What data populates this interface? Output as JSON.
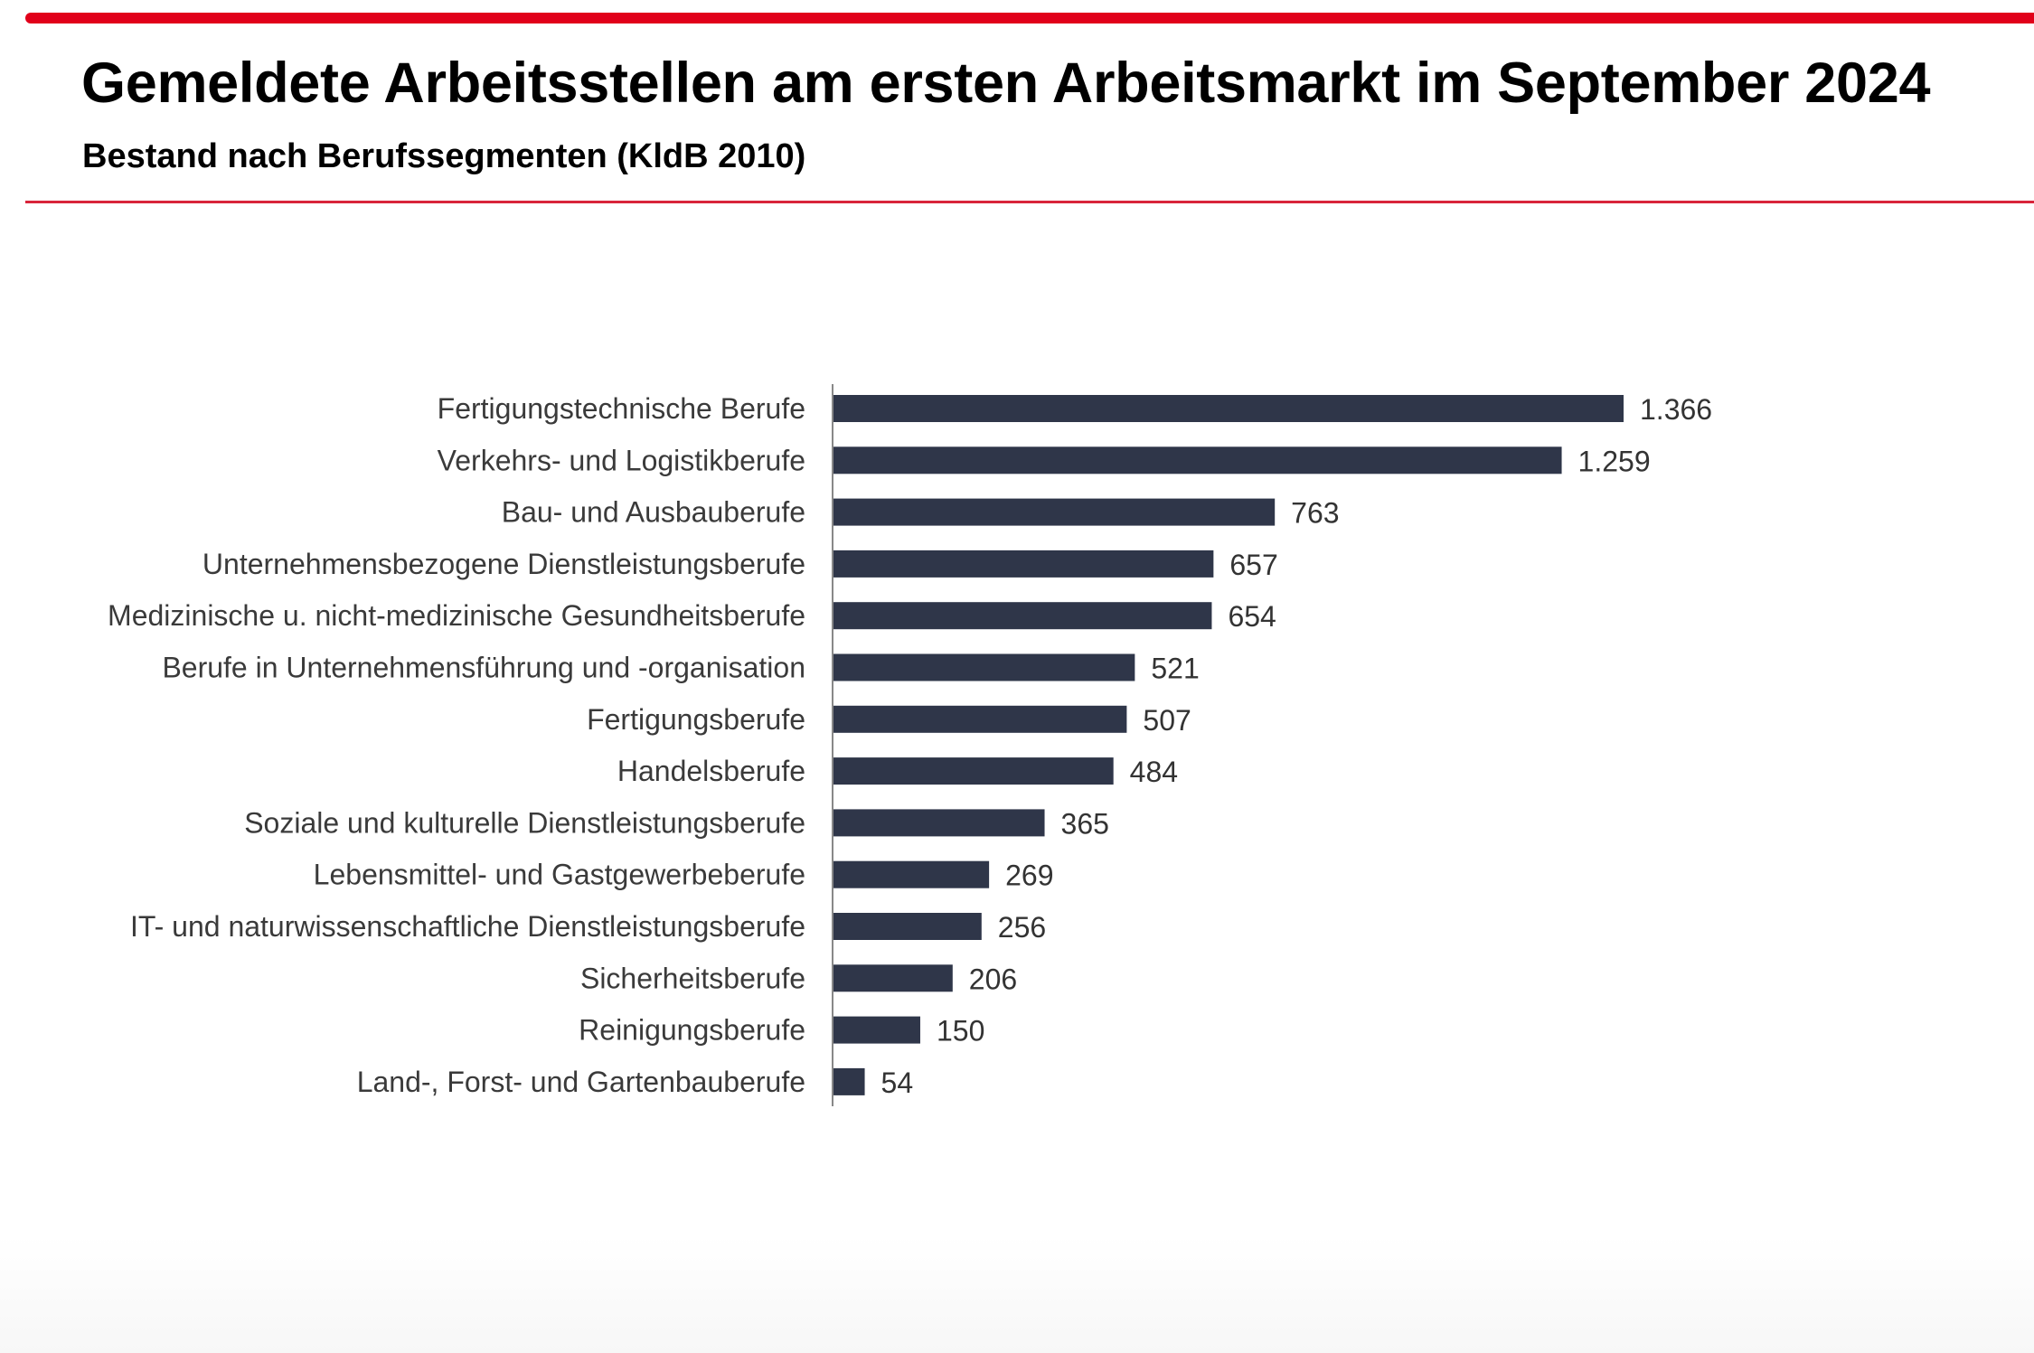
{
  "title": "Gemeldete Arbeitsstellen am ersten Arbeitsmarkt im September 2024",
  "subtitle": "Bestand nach Berufssegmenten (KldB 2010)",
  "colors": {
    "accent": "#e1001a",
    "bar": "#2f3649"
  },
  "chart_data": {
    "type": "bar",
    "orientation": "horizontal",
    "title": "Gemeldete Arbeitsstellen am ersten Arbeitsmarkt im September 2024",
    "subtitle": "Bestand nach Berufssegmenten (KldB 2010)",
    "xlabel": "",
    "ylabel": "",
    "grid": false,
    "xlim": [
      0,
      1366
    ],
    "categories": [
      "Fertigungstechnische Berufe",
      "Verkehrs- und Logistikberufe",
      "Bau- und Ausbauberufe",
      "Unternehmensbezogene Dienstleistungsberufe",
      "Medizinische u. nicht-medizinische Gesundheitsberufe",
      "Berufe in Unternehmensführung und -organisation",
      "Fertigungsberufe",
      "Handelsberufe",
      "Soziale und kulturelle Dienstleistungsberufe",
      "Lebensmittel- und Gastgewerbeberufe",
      "IT- und naturwissenschaftliche Dienstleistungsberufe",
      "Sicherheitsberufe",
      "Reinigungsberufe",
      "Land-, Forst- und Gartenbauberufe"
    ],
    "values": [
      1366,
      1259,
      763,
      657,
      654,
      521,
      507,
      484,
      365,
      269,
      256,
      206,
      150,
      54
    ],
    "value_labels": [
      "1.366",
      "1.259",
      "763",
      "657",
      "654",
      "521",
      "507",
      "484",
      "365",
      "269",
      "256",
      "206",
      "150",
      "54"
    ]
  }
}
